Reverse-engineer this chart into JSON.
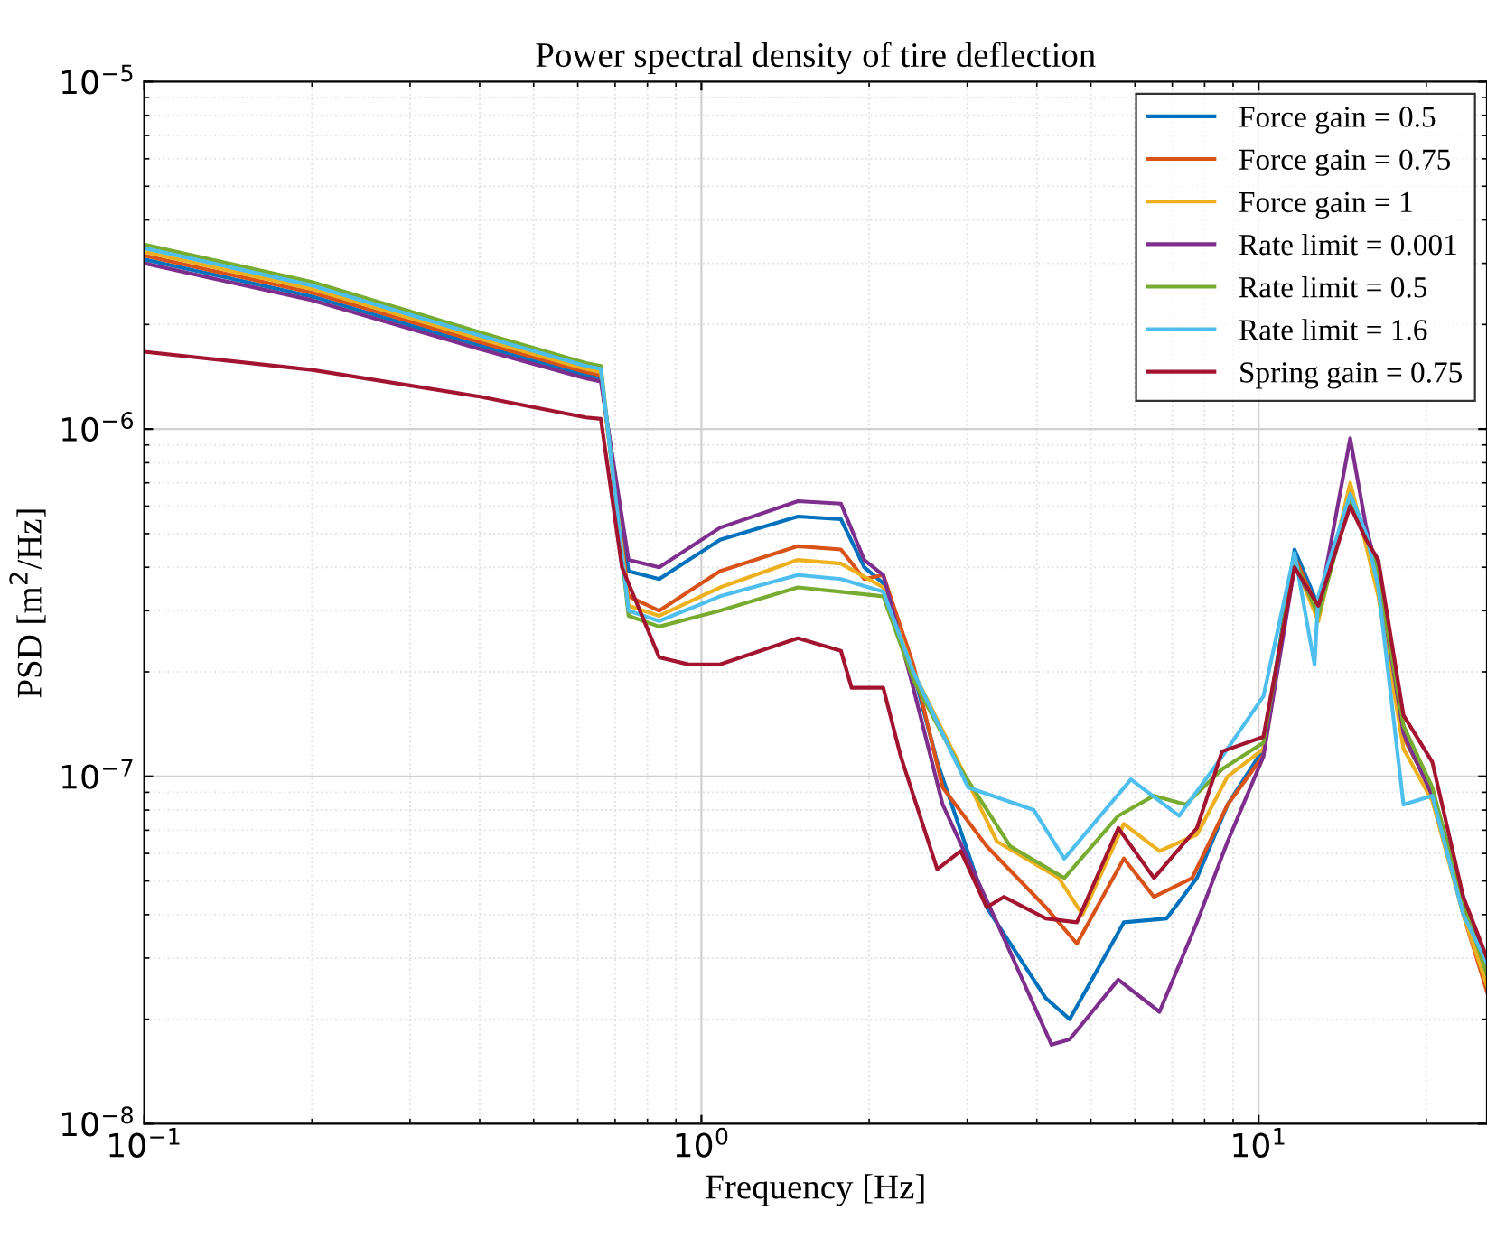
{
  "chart_data": {
    "type": "line",
    "title": "Power spectral density of tire deflection",
    "xlabel": "Frequency [Hz]",
    "ylabel": "PSD [m$^{2}$/Hz]",
    "log": "xy",
    "grid": true,
    "legend": "top right",
    "line_style": "solid",
    "marker": "none",
    "xlim": [
      0.1,
      25.7
    ],
    "ylim": [
      1e-08,
      1e-05
    ],
    "xticks": [
      {
        "value": 0.1,
        "label": "10$^{−1}$"
      },
      {
        "value": 1,
        "label": "10$^{0}$"
      },
      {
        "value": 10,
        "label": "10$^{1}$"
      }
    ],
    "yticks": [
      {
        "value": 1e-08,
        "label": "10$^{−8}$"
      },
      {
        "value": 1e-07,
        "label": "10$^{−7}$"
      },
      {
        "value": 1e-06,
        "label": "10$^{−6}$"
      },
      {
        "value": 1e-05,
        "label": "10$^{−5}$"
      }
    ],
    "series": [
      {
        "name": "Force gain = 0.5",
        "color": "#0072bd",
        "x": [
          0.1,
          0.2,
          0.4,
          0.62,
          0.66,
          0.74,
          0.84,
          1.08,
          1.49,
          1.78,
          1.96,
          2.12,
          2.4,
          2.65,
          3.25,
          4.15,
          4.58,
          5.73,
          6.84,
          7.75,
          8.8,
          10.2,
          11.6,
          12.8,
          14.6,
          15.6,
          16.4,
          18.2,
          20.5,
          23.3,
          25.7
        ],
        "values": [
          3.08e-06,
          2.41e-06,
          1.74e-06,
          1.43e-06,
          1.4e-06,
          3.9e-07,
          3.7e-07,
          4.8e-07,
          5.6e-07,
          5.5e-07,
          4e-07,
          3.6e-07,
          2e-07,
          1.1e-07,
          4.2e-08,
          2.3e-08,
          2e-08,
          3.8e-08,
          3.9e-08,
          5.1e-08,
          8.3e-08,
          1.2e-07,
          4.5e-07,
          3.1e-07,
          6.5e-07,
          5e-07,
          4e-07,
          1.3e-07,
          9e-08,
          4.5e-08,
          2.6e-08
        ]
      },
      {
        "name": "Force gain = 0.75",
        "color": "#d95319",
        "x": [
          0.1,
          0.2,
          0.4,
          0.62,
          0.66,
          0.74,
          0.84,
          1.08,
          1.49,
          1.78,
          1.96,
          2.12,
          2.4,
          2.71,
          3.25,
          4.15,
          4.72,
          5.73,
          6.49,
          7.6,
          8.8,
          10.2,
          11.6,
          12.8,
          14.6,
          15.6,
          16.4,
          18.2,
          20.5,
          23.3,
          25.7
        ],
        "values": [
          3.16e-06,
          2.47e-06,
          1.78e-06,
          1.46e-06,
          1.43e-06,
          3.3e-07,
          3e-07,
          3.9e-07,
          4.6e-07,
          4.5e-07,
          3.7e-07,
          3.8e-07,
          2.1e-07,
          9.3e-08,
          6.3e-08,
          4.2e-08,
          3.3e-08,
          5.8e-08,
          4.5e-08,
          5.1e-08,
          8.3e-08,
          1.15e-07,
          4.3e-07,
          3e-07,
          6.6e-07,
          4.8e-07,
          3.7e-07,
          1.3e-07,
          9e-08,
          4e-08,
          2.4e-08
        ]
      },
      {
        "name": "Force gain = 1",
        "color": "#edb120",
        "x": [
          0.1,
          0.2,
          0.4,
          0.62,
          0.66,
          0.74,
          0.84,
          1.08,
          1.49,
          1.78,
          2.12,
          2.4,
          2.86,
          3.39,
          4.38,
          4.83,
          5.73,
          6.64,
          7.75,
          8.8,
          10.2,
          11.6,
          12.8,
          14.6,
          15.6,
          16.4,
          18.2,
          20.5,
          23.3,
          25.7
        ],
        "values": [
          3.24e-06,
          2.53e-06,
          1.82e-06,
          1.49e-06,
          1.46e-06,
          3.1e-07,
          2.9e-07,
          3.5e-07,
          4.2e-07,
          4.1e-07,
          3.5e-07,
          2e-07,
          1.14e-07,
          6.5e-08,
          5.1e-08,
          4e-08,
          7.3e-08,
          6.1e-08,
          6.8e-08,
          1e-07,
          1.2e-07,
          4.1e-07,
          2.8e-07,
          7e-07,
          4.6e-07,
          3.3e-07,
          1.2e-07,
          8.5e-08,
          4e-08,
          2.5e-08
        ]
      },
      {
        "name": "Rate limit = 0.001",
        "color": "#7e2f8e",
        "x": [
          0.1,
          0.2,
          0.4,
          0.62,
          0.66,
          0.74,
          0.84,
          1.08,
          1.49,
          1.78,
          1.96,
          2.12,
          2.4,
          2.71,
          3.39,
          4.25,
          4.58,
          5.6,
          6.64,
          7.75,
          8.8,
          10.2,
          11.6,
          12.8,
          14.6,
          15.6,
          16.4,
          18.2,
          20.5,
          23.3,
          25.7
        ],
        "values": [
          3e-06,
          2.35e-06,
          1.7e-06,
          1.4e-06,
          1.37e-06,
          4.2e-07,
          4e-07,
          5.2e-07,
          6.2e-07,
          6.1e-07,
          4.2e-07,
          3.8e-07,
          1.8e-07,
          8.3e-08,
          3.8e-08,
          1.69e-08,
          1.75e-08,
          2.6e-08,
          2.1e-08,
          3.8e-08,
          6.5e-08,
          1.14e-07,
          4e-07,
          3e-07,
          9.4e-07,
          5.2e-07,
          3.8e-07,
          1.33e-07,
          8.8e-08,
          4.2e-08,
          3e-08
        ]
      },
      {
        "name": "Rate limit = 0.5",
        "color": "#77ac30",
        "x": [
          0.1,
          0.2,
          0.4,
          0.62,
          0.66,
          0.74,
          0.84,
          1.08,
          1.49,
          1.78,
          2.12,
          2.4,
          2.92,
          3.58,
          4.48,
          5.6,
          6.49,
          7.4,
          8.6,
          10.2,
          11.6,
          12.8,
          14.6,
          15.6,
          16.4,
          18.2,
          20.5,
          23.3,
          25.7
        ],
        "values": [
          3.4e-06,
          2.65e-06,
          1.9e-06,
          1.55e-06,
          1.52e-06,
          2.9e-07,
          2.7e-07,
          3e-07,
          3.5e-07,
          3.4e-07,
          3.3e-07,
          1.9e-07,
          1.05e-07,
          6.3e-08,
          5.1e-08,
          7.7e-08,
          8.8e-08,
          8.3e-08,
          1.05e-07,
          1.25e-07,
          4.2e-07,
          2.9e-07,
          6.3e-07,
          4.9e-07,
          3.8e-07,
          1.4e-07,
          9.3e-08,
          4.3e-08,
          2.7e-08
        ]
      },
      {
        "name": "Rate limit = 1.6",
        "color": "#4dbeee",
        "x": [
          0.1,
          0.2,
          0.4,
          0.62,
          0.66,
          0.74,
          0.84,
          1.08,
          1.49,
          1.78,
          2.12,
          2.4,
          3.01,
          3.95,
          4.48,
          5.9,
          7.2,
          8.6,
          10.2,
          11.6,
          12.6,
          12.8,
          14.6,
          15.6,
          16.4,
          18.2,
          20.5,
          23.3,
          25.7
        ],
        "values": [
          3.32e-06,
          2.59e-06,
          1.86e-06,
          1.52e-06,
          1.49e-06,
          3e-07,
          2.8e-07,
          3.3e-07,
          3.8e-07,
          3.7e-07,
          3.4e-07,
          2e-07,
          9.3e-08,
          8e-08,
          5.8e-08,
          9.8e-08,
          7.7e-08,
          1.14e-07,
          1.7e-07,
          4.4e-07,
          2.1e-07,
          3.3e-07,
          6.5e-07,
          5e-07,
          3.5e-07,
          8.3e-08,
          8.8e-08,
          4e-08,
          2.9e-08
        ]
      },
      {
        "name": "Spring gain = 0.75",
        "color": "#a2142f",
        "x": [
          0.1,
          0.2,
          0.4,
          0.62,
          0.66,
          0.72,
          0.84,
          0.95,
          1.08,
          1.49,
          1.78,
          1.86,
          2.12,
          2.28,
          2.65,
          2.92,
          3.25,
          3.49,
          4.15,
          4.72,
          5.6,
          6.49,
          7.75,
          8.6,
          10.2,
          11.6,
          12.8,
          14.6,
          15.6,
          16.4,
          18.2,
          20.5,
          23.3,
          25.7
        ],
        "values": [
          1.67e-06,
          1.48e-06,
          1.24e-06,
          1.08e-06,
          1.07e-06,
          4e-07,
          2.2e-07,
          2.1e-07,
          2.1e-07,
          2.5e-07,
          2.3e-07,
          1.8e-07,
          1.8e-07,
          1.14e-07,
          5.4e-08,
          6.1e-08,
          4.2e-08,
          4.5e-08,
          3.9e-08,
          3.8e-08,
          7.1e-08,
          5.1e-08,
          7.1e-08,
          1.18e-07,
          1.3e-07,
          4e-07,
          3.1e-07,
          6e-07,
          4.8e-07,
          4.2e-07,
          1.5e-07,
          1.1e-07,
          4.5e-08,
          3e-08
        ]
      }
    ]
  }
}
